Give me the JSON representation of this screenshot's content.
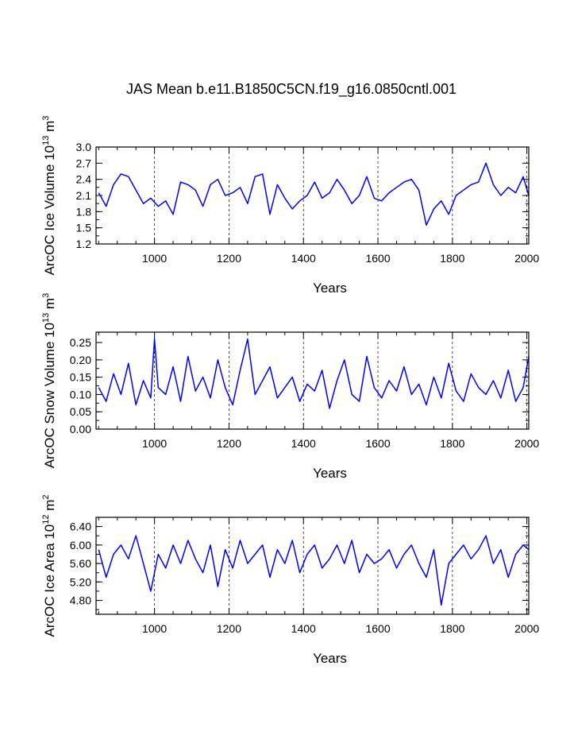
{
  "title": "JAS Mean b.e11.B1850C5CN.f19_g16.0850cntl.001",
  "line_color": "#0000ff",
  "chart_data": [
    {
      "type": "line",
      "xlabel": "Years",
      "ylabel": "ArcOC Ice Volume",
      "yunit_base": "10",
      "yunit_exp": "13",
      "yunit_m": "m",
      "yunit_mexp": "3",
      "xlim": [
        843,
        2005
      ],
      "ylim": [
        1.2,
        3.0
      ],
      "xticks": [
        1000,
        1200,
        1400,
        1600,
        1800,
        2000
      ],
      "xtick_labels": [
        "1000",
        "1200",
        "1400",
        "1600",
        "1800",
        "2000"
      ],
      "yticks": [
        1.2,
        1.5,
        1.8,
        2.1,
        2.4,
        2.7,
        3.0
      ],
      "ytick_labels": [
        "1.2",
        "1.5",
        "1.8",
        "2.1",
        "2.4",
        "2.7",
        "3.0"
      ],
      "grid": "vertical dashed at major x ticks",
      "series": [
        {
          "name": "ArcOC Ice Volume",
          "x": [
            850,
            870,
            890,
            910,
            930,
            950,
            970,
            990,
            1010,
            1030,
            1050,
            1070,
            1090,
            1110,
            1130,
            1150,
            1170,
            1190,
            1210,
            1230,
            1250,
            1270,
            1290,
            1310,
            1330,
            1350,
            1370,
            1390,
            1410,
            1430,
            1450,
            1470,
            1490,
            1510,
            1530,
            1550,
            1570,
            1590,
            1610,
            1630,
            1650,
            1670,
            1690,
            1710,
            1730,
            1750,
            1770,
            1790,
            1810,
            1830,
            1850,
            1870,
            1890,
            1910,
            1930,
            1950,
            1970,
            1990,
            2005
          ],
          "values": [
            2.15,
            1.9,
            2.3,
            2.5,
            2.45,
            2.2,
            1.95,
            2.05,
            1.9,
            2.0,
            1.75,
            2.35,
            2.3,
            2.2,
            1.9,
            2.3,
            2.4,
            2.1,
            2.15,
            2.25,
            1.95,
            2.45,
            2.5,
            1.75,
            2.3,
            2.05,
            1.85,
            2.0,
            2.1,
            2.35,
            2.05,
            2.15,
            2.4,
            2.2,
            1.95,
            2.1,
            2.45,
            2.05,
            2.0,
            2.15,
            2.25,
            2.35,
            2.4,
            2.2,
            1.55,
            1.85,
            2.0,
            1.75,
            2.1,
            2.2,
            2.3,
            2.35,
            2.7,
            2.3,
            2.1,
            2.25,
            2.15,
            2.45,
            2.1
          ]
        }
      ]
    },
    {
      "type": "line",
      "xlabel": "Years",
      "ylabel": "ArcOC Snow Volume",
      "yunit_base": "10",
      "yunit_exp": "13",
      "yunit_m": "m",
      "yunit_mexp": "3",
      "xlim": [
        843,
        2005
      ],
      "ylim": [
        0.0,
        0.28
      ],
      "xticks": [
        1000,
        1200,
        1400,
        1600,
        1800,
        2000
      ],
      "xtick_labels": [
        "1000",
        "1200",
        "1400",
        "1600",
        "1800",
        "2000"
      ],
      "yticks": [
        0.0,
        0.05,
        0.1,
        0.15,
        0.2,
        0.25
      ],
      "ytick_labels": [
        "0.00",
        "0.05",
        "0.10",
        "0.15",
        "0.20",
        "0.25"
      ],
      "grid": "vertical dashed at major x ticks",
      "series": [
        {
          "name": "ArcOC Snow Volume",
          "x": [
            850,
            870,
            890,
            910,
            930,
            950,
            970,
            990,
            1000,
            1010,
            1030,
            1050,
            1070,
            1090,
            1110,
            1130,
            1150,
            1170,
            1190,
            1210,
            1230,
            1250,
            1270,
            1290,
            1310,
            1330,
            1350,
            1370,
            1390,
            1410,
            1430,
            1450,
            1470,
            1490,
            1510,
            1530,
            1550,
            1570,
            1590,
            1610,
            1630,
            1650,
            1670,
            1690,
            1710,
            1730,
            1750,
            1770,
            1790,
            1810,
            1830,
            1850,
            1870,
            1890,
            1910,
            1930,
            1950,
            1970,
            1990,
            2005
          ],
          "values": [
            0.12,
            0.08,
            0.16,
            0.1,
            0.19,
            0.07,
            0.14,
            0.09,
            0.26,
            0.12,
            0.1,
            0.18,
            0.08,
            0.21,
            0.11,
            0.15,
            0.09,
            0.2,
            0.12,
            0.07,
            0.17,
            0.26,
            0.1,
            0.14,
            0.18,
            0.09,
            0.12,
            0.15,
            0.08,
            0.13,
            0.11,
            0.17,
            0.06,
            0.14,
            0.2,
            0.1,
            0.08,
            0.21,
            0.12,
            0.09,
            0.14,
            0.11,
            0.18,
            0.1,
            0.13,
            0.07,
            0.15,
            0.09,
            0.19,
            0.11,
            0.08,
            0.16,
            0.12,
            0.1,
            0.14,
            0.09,
            0.17,
            0.08,
            0.12,
            0.21
          ]
        }
      ]
    },
    {
      "type": "line",
      "xlabel": "Years",
      "ylabel": "ArcOC Ice Area",
      "yunit_base": "10",
      "yunit_exp": "12",
      "yunit_m": "m",
      "yunit_mexp": "2",
      "xlim": [
        843,
        2005
      ],
      "ylim": [
        4.5,
        6.6
      ],
      "xticks": [
        1000,
        1200,
        1400,
        1600,
        1800,
        2000
      ],
      "xtick_labels": [
        "1000",
        "1200",
        "1400",
        "1600",
        "1800",
        "2000"
      ],
      "yticks": [
        4.8,
        5.2,
        5.6,
        6.0,
        6.4
      ],
      "ytick_labels": [
        "4.80",
        "5.20",
        "5.60",
        "6.00",
        "6.40"
      ],
      "grid": "vertical dashed at major x ticks",
      "series": [
        {
          "name": "ArcOC Ice Area",
          "x": [
            850,
            870,
            890,
            910,
            930,
            950,
            970,
            990,
            1010,
            1030,
            1050,
            1070,
            1090,
            1110,
            1130,
            1150,
            1170,
            1190,
            1210,
            1230,
            1250,
            1270,
            1290,
            1310,
            1330,
            1350,
            1370,
            1390,
            1410,
            1430,
            1450,
            1470,
            1490,
            1510,
            1530,
            1550,
            1570,
            1590,
            1610,
            1630,
            1650,
            1670,
            1690,
            1710,
            1730,
            1750,
            1770,
            1790,
            1810,
            1830,
            1850,
            1870,
            1890,
            1910,
            1930,
            1950,
            1970,
            1990,
            2005
          ],
          "values": [
            5.9,
            5.3,
            5.8,
            6.0,
            5.7,
            6.2,
            5.6,
            5.0,
            5.8,
            5.5,
            6.0,
            5.6,
            6.1,
            5.7,
            5.4,
            6.0,
            5.1,
            5.9,
            5.5,
            6.1,
            5.6,
            5.8,
            6.0,
            5.3,
            5.9,
            5.6,
            6.1,
            5.4,
            5.8,
            6.0,
            5.5,
            5.7,
            6.0,
            5.6,
            6.1,
            5.4,
            5.8,
            5.6,
            5.7,
            5.9,
            5.5,
            5.8,
            6.0,
            5.6,
            5.3,
            5.9,
            4.7,
            5.6,
            5.8,
            6.0,
            5.7,
            5.9,
            6.2,
            5.6,
            5.9,
            5.3,
            5.8,
            6.0,
            5.9
          ]
        }
      ]
    }
  ]
}
